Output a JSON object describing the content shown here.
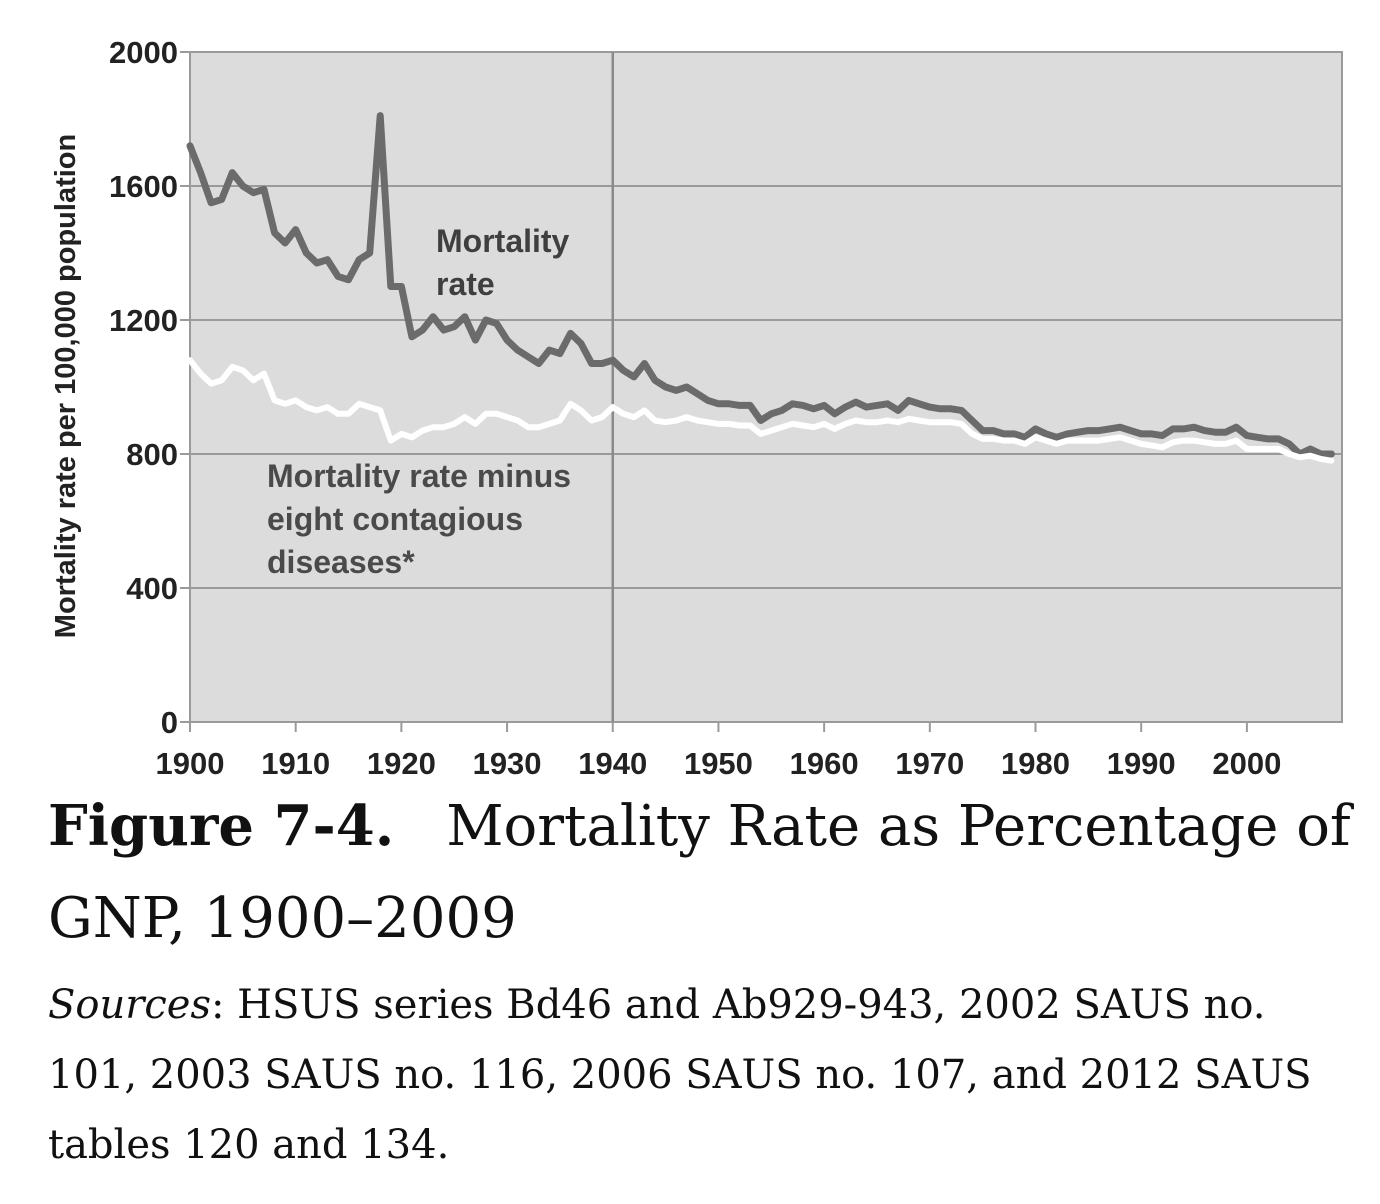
{
  "chart_data": {
    "type": "line",
    "ylabel": "Mortality rate per 100,000 population",
    "ylim": [
      0,
      2000
    ],
    "yticks": [
      "0",
      "400",
      "800",
      "1200",
      "1600",
      "2000"
    ],
    "xlim": [
      1900,
      2009
    ],
    "xticks": [
      "1900",
      "1910",
      "1920",
      "1930",
      "1940",
      "1950",
      "1960",
      "1970",
      "1980",
      "1990",
      "2000"
    ],
    "grid": "horizontal",
    "reference_line_x": 1940,
    "colors": {
      "plot_background": "#dcdcdc",
      "grid": "#9a9a9a",
      "mortality_rate": "#6b6b6b",
      "minus_contagious": "#ffffff"
    },
    "series": [
      {
        "name": "Mortality rate",
        "x": [
          1900,
          1901,
          1902,
          1903,
          1904,
          1905,
          1906,
          1907,
          1908,
          1909,
          1910,
          1911,
          1912,
          1913,
          1914,
          1915,
          1916,
          1917,
          1918,
          1919,
          1920,
          1921,
          1922,
          1923,
          1924,
          1925,
          1926,
          1927,
          1928,
          1929,
          1930,
          1931,
          1932,
          1933,
          1934,
          1935,
          1936,
          1937,
          1938,
          1939,
          1940,
          1941,
          1942,
          1943,
          1944,
          1945,
          1946,
          1947,
          1948,
          1949,
          1950,
          1951,
          1952,
          1953,
          1954,
          1955,
          1956,
          1957,
          1958,
          1959,
          1960,
          1961,
          1962,
          1963,
          1964,
          1965,
          1966,
          1967,
          1968,
          1969,
          1970,
          1971,
          1972,
          1973,
          1974,
          1975,
          1976,
          1977,
          1978,
          1979,
          1980,
          1981,
          1982,
          1983,
          1984,
          1985,
          1986,
          1987,
          1988,
          1989,
          1990,
          1991,
          1992,
          1993,
          1994,
          1995,
          1996,
          1997,
          1998,
          1999,
          2000,
          2001,
          2002,
          2003,
          2004,
          2005,
          2006,
          2007,
          2008
        ],
        "values": [
          1720,
          1640,
          1550,
          1560,
          1640,
          1600,
          1580,
          1590,
          1460,
          1430,
          1470,
          1400,
          1370,
          1380,
          1330,
          1320,
          1380,
          1400,
          1810,
          1300,
          1300,
          1150,
          1170,
          1210,
          1170,
          1180,
          1210,
          1140,
          1200,
          1190,
          1140,
          1110,
          1090,
          1070,
          1110,
          1100,
          1160,
          1130,
          1070,
          1070,
          1080,
          1050,
          1030,
          1070,
          1020,
          1000,
          990,
          1000,
          980,
          960,
          950,
          950,
          945,
          945,
          900,
          920,
          930,
          950,
          945,
          935,
          945,
          920,
          940,
          955,
          940,
          945,
          950,
          930,
          960,
          950,
          940,
          935,
          935,
          930,
          900,
          870,
          870,
          860,
          860,
          850,
          875,
          860,
          850,
          860,
          865,
          870,
          870,
          875,
          880,
          870,
          860,
          860,
          855,
          875,
          875,
          880,
          870,
          865,
          865,
          880,
          855,
          850,
          845,
          845,
          830,
          800,
          815,
          800,
          800
        ]
      },
      {
        "name": "Mortality rate minus eight contagious diseases*",
        "x": [
          1900,
          1901,
          1902,
          1903,
          1904,
          1905,
          1906,
          1907,
          1908,
          1909,
          1910,
          1911,
          1912,
          1913,
          1914,
          1915,
          1916,
          1917,
          1918,
          1919,
          1920,
          1921,
          1922,
          1923,
          1924,
          1925,
          1926,
          1927,
          1928,
          1929,
          1930,
          1931,
          1932,
          1933,
          1934,
          1935,
          1936,
          1937,
          1938,
          1939,
          1940,
          1941,
          1942,
          1943,
          1944,
          1945,
          1946,
          1947,
          1948,
          1949,
          1950,
          1951,
          1952,
          1953,
          1954,
          1955,
          1956,
          1957,
          1958,
          1959,
          1960,
          1961,
          1962,
          1963,
          1964,
          1965,
          1966,
          1967,
          1968,
          1969,
          1970,
          1971,
          1972,
          1973,
          1974,
          1975,
          1976,
          1977,
          1978,
          1979,
          1980,
          1981,
          1982,
          1983,
          1984,
          1985,
          1986,
          1987,
          1988,
          1989,
          1990,
          1991,
          1992,
          1993,
          1994,
          1995,
          1996,
          1997,
          1998,
          1999,
          2000,
          2001,
          2002,
          2003,
          2004,
          2005,
          2006,
          2007,
          2008
        ],
        "values": [
          1080,
          1040,
          1010,
          1020,
          1060,
          1050,
          1020,
          1040,
          960,
          950,
          960,
          940,
          930,
          940,
          920,
          920,
          950,
          940,
          930,
          840,
          860,
          850,
          870,
          880,
          880,
          890,
          910,
          890,
          920,
          920,
          910,
          900,
          880,
          880,
          890,
          900,
          950,
          930,
          900,
          910,
          940,
          920,
          910,
          930,
          900,
          895,
          900,
          910,
          900,
          895,
          890,
          890,
          885,
          885,
          860,
          870,
          880,
          890,
          885,
          880,
          890,
          875,
          890,
          900,
          895,
          895,
          900,
          895,
          905,
          900,
          895,
          895,
          895,
          890,
          860,
          845,
          845,
          840,
          840,
          830,
          850,
          840,
          830,
          840,
          840,
          840,
          840,
          845,
          850,
          840,
          830,
          825,
          820,
          835,
          840,
          840,
          835,
          830,
          830,
          840,
          815,
          815,
          815,
          815,
          800,
          790,
          795,
          785,
          780
        ]
      }
    ]
  },
  "annotations": {
    "mortality_rate": [
      "Mortality",
      "rate"
    ],
    "minus_contagious": [
      "Mortality rate minus",
      "eight contagious",
      "diseases*"
    ]
  },
  "caption": {
    "figure_number": "Figure 7-4.",
    "figure_title": "Mortality Rate as Percentage of GNP, 1900–2009",
    "sources_label": "Sources",
    "sources_text": ": HSUS series Bd46 and Ab929-943, 2002 SAUS no. 101, 2003 SAUS no. 116, 2006 SAUS no. 107, and 2012 SAUS tables 120 and 134."
  }
}
